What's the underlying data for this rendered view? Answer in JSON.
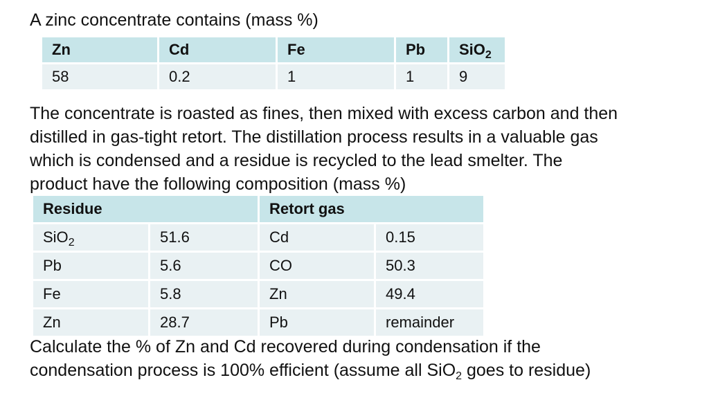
{
  "intro_text": "A zinc concentrate contains (mass %)",
  "composition_table": {
    "headers": [
      {
        "text": "Zn",
        "sub": ""
      },
      {
        "text": "Cd",
        "sub": ""
      },
      {
        "text": "Fe",
        "sub": ""
      },
      {
        "text": "Pb",
        "sub": ""
      },
      {
        "text": "SiO",
        "sub": "2"
      }
    ],
    "values": [
      "58",
      "0.2",
      "1",
      "1",
      "9"
    ]
  },
  "paragraph": {
    "line1": "The concentrate is roasted as fines, then mixed with excess carbon and then",
    "line2": "distilled in gas-tight retort. The distillation process results in a valuable gas",
    "line3": "which is condensed and a residue is recycled to the lead smelter. The",
    "line4": "product have the following composition (mass %)"
  },
  "product_table": {
    "residue_header": "Residue",
    "retort_header": "Retort gas",
    "rows": [
      {
        "residue_name": "SiO",
        "residue_sub": "2",
        "residue_value": "51.6",
        "gas_name": "Cd",
        "gas_value": "0.15"
      },
      {
        "residue_name": "Pb",
        "residue_sub": "",
        "residue_value": "5.6",
        "gas_name": "CO",
        "gas_value": "50.3"
      },
      {
        "residue_name": "Fe",
        "residue_sub": "",
        "residue_value": "5.8",
        "gas_name": "Zn",
        "gas_value": "49.4"
      },
      {
        "residue_name": "Zn",
        "residue_sub": "",
        "residue_value": "28.7",
        "gas_name": "Pb",
        "gas_value": "remainder"
      }
    ]
  },
  "question": {
    "line1": "Calculate the % of Zn and Cd recovered during condensation if the",
    "line2_before": "condensation process is 100% efficient (assume all SiO",
    "line2_sub": "2",
    "line2_after": " goes to residue)"
  }
}
